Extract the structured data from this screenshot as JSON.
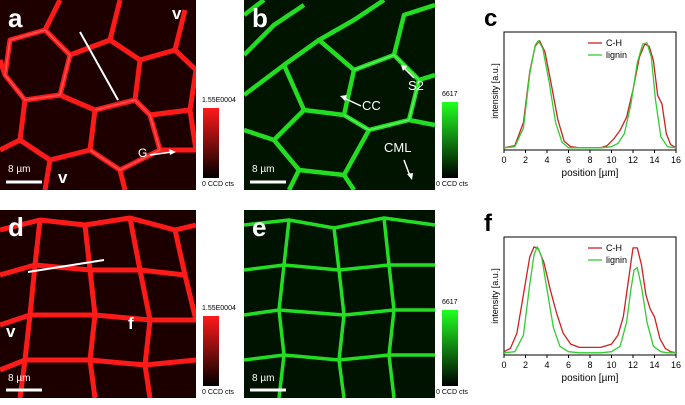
{
  "panels": {
    "a": {
      "letter": "a",
      "v_top": "v",
      "v_bottom": "v",
      "annotation": "G",
      "scalebar": "8 µm",
      "colorbar_max": "1.55E0004",
      "colorbar_min": "0 CCD cts",
      "color": "#ff1a1a"
    },
    "b": {
      "letter": "b",
      "cc": "CC",
      "s2": "S2",
      "cml": "CML",
      "scalebar": "8 µm",
      "colorbar_max": "6617",
      "colorbar_min": "0 CCD cts",
      "color": "#22dd22"
    },
    "d": {
      "letter": "d",
      "v_left": "v",
      "f_label": "f",
      "scalebar": "8 µm",
      "colorbar_max": "1.55E0004",
      "colorbar_min": "0 CCD cts",
      "color": "#ff1a1a"
    },
    "e": {
      "letter": "e",
      "scalebar": "8 µm",
      "colorbar_max": "6617",
      "colorbar_min": "0 CCD cts",
      "color": "#22dd22"
    }
  },
  "chart_data": [
    {
      "type": "line",
      "panel_letter": "c",
      "xlabel": "position [µm]",
      "ylabel": "intensity [a.u.]",
      "xlim": [
        0,
        16
      ],
      "xticks": [
        0,
        2,
        4,
        6,
        8,
        10,
        12,
        14,
        16
      ],
      "legend_position": "top-right",
      "series": [
        {
          "name": "C-H",
          "color": "#cc2222",
          "x": [
            0,
            1,
            1.8,
            2.4,
            2.9,
            3.3,
            3.8,
            4.4,
            5.0,
            5.6,
            6.2,
            7,
            8,
            9,
            9.6,
            10.2,
            10.8,
            11.4,
            12.0,
            12.6,
            13.1,
            13.5,
            13.9,
            14.3,
            14.7,
            15.1,
            15.5,
            16
          ],
          "y": [
            0.02,
            0.04,
            0.25,
            0.72,
            0.95,
            1.0,
            0.9,
            0.6,
            0.28,
            0.08,
            0.03,
            0.02,
            0.02,
            0.02,
            0.04,
            0.1,
            0.18,
            0.3,
            0.55,
            0.85,
            0.97,
            0.95,
            0.82,
            0.5,
            0.42,
            0.15,
            0.05,
            0.02
          ]
        },
        {
          "name": "lignin",
          "color": "#33cc33",
          "x": [
            0,
            1,
            1.8,
            2.4,
            2.9,
            3.2,
            3.6,
            4.2,
            4.8,
            5.4,
            6.0,
            7,
            8,
            9,
            10,
            10.6,
            11.2,
            11.8,
            12.4,
            12.9,
            13.3,
            13.7,
            14.1,
            14.6,
            15.2,
            16
          ],
          "y": [
            0.02,
            0.03,
            0.2,
            0.7,
            0.96,
            1.0,
            0.93,
            0.62,
            0.25,
            0.07,
            0.02,
            0.02,
            0.02,
            0.02,
            0.03,
            0.06,
            0.15,
            0.42,
            0.8,
            0.97,
            0.98,
            0.85,
            0.45,
            0.12,
            0.03,
            0.02
          ]
        }
      ]
    },
    {
      "type": "line",
      "panel_letter": "f",
      "xlabel": "position [µm]",
      "ylabel": "intensity [a.u.]",
      "xlim": [
        0,
        16
      ],
      "xticks": [
        0,
        2,
        4,
        6,
        8,
        10,
        12,
        14,
        16
      ],
      "legend_position": "top-right",
      "series": [
        {
          "name": "C-H",
          "color": "#cc2222",
          "x": [
            0,
            0.6,
            1.2,
            1.8,
            2.4,
            2.8,
            3.2,
            3.7,
            4.3,
            4.9,
            5.5,
            6.2,
            7,
            8,
            9,
            10,
            10.6,
            11.1,
            11.6,
            12.0,
            12.4,
            12.8,
            13.2,
            13.6,
            14.0,
            14.5,
            15.0,
            15.5,
            16
          ],
          "y": [
            0.03,
            0.06,
            0.2,
            0.55,
            0.9,
            0.99,
            0.97,
            0.85,
            0.6,
            0.38,
            0.2,
            0.1,
            0.07,
            0.07,
            0.07,
            0.1,
            0.18,
            0.35,
            0.7,
            0.98,
            0.98,
            0.82,
            0.55,
            0.42,
            0.35,
            0.15,
            0.06,
            0.03,
            0.02
          ]
        },
        {
          "name": "lignin",
          "color": "#33cc33",
          "x": [
            0,
            1,
            1.8,
            2.4,
            2.8,
            3.1,
            3.5,
            4.0,
            4.6,
            5.2,
            6.0,
            7,
            8,
            9,
            10,
            10.8,
            11.4,
            11.8,
            12.1,
            12.4,
            12.8,
            13.3,
            13.9,
            14.6,
            15.2,
            16
          ],
          "y": [
            0.02,
            0.03,
            0.18,
            0.65,
            0.92,
            0.99,
            0.9,
            0.6,
            0.25,
            0.08,
            0.03,
            0.02,
            0.02,
            0.02,
            0.03,
            0.08,
            0.3,
            0.6,
            0.78,
            0.8,
            0.62,
            0.3,
            0.08,
            0.03,
            0.02,
            0.02
          ]
        }
      ]
    }
  ]
}
